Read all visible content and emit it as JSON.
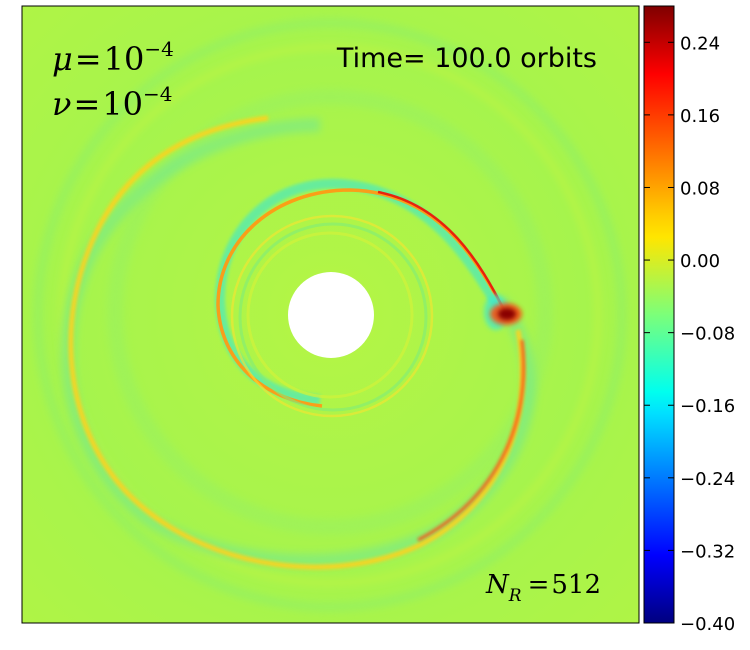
{
  "chart_data": {
    "type": "heatmap",
    "annotations": {
      "mu": {
        "symbol": "μ",
        "op": "=",
        "base": "10",
        "exp": "−4"
      },
      "nu": {
        "symbol": "ν",
        "op": "=",
        "base": "10",
        "exp": "−4"
      },
      "time": "Time= 100.0 orbits",
      "resolution": {
        "symbol": "N",
        "sub": "R",
        "op": "=",
        "value": "512"
      }
    },
    "colorbar": {
      "colormap": "jet",
      "range": [
        -0.4,
        0.28
      ],
      "ticks": [
        0.24,
        0.16,
        0.08,
        0.0,
        -0.08,
        -0.16,
        -0.24,
        -0.32,
        -0.4
      ],
      "tick_labels": [
        "0.24",
        "0.16",
        "0.08",
        "0.00",
        "−0.08",
        "−0.16",
        "−0.24",
        "−0.32",
        "−0.40"
      ]
    },
    "background_value": -0.01,
    "colors": {
      "background": "#a8f54a",
      "inner_hole": "#ffffff",
      "frame": "#000000"
    }
  }
}
